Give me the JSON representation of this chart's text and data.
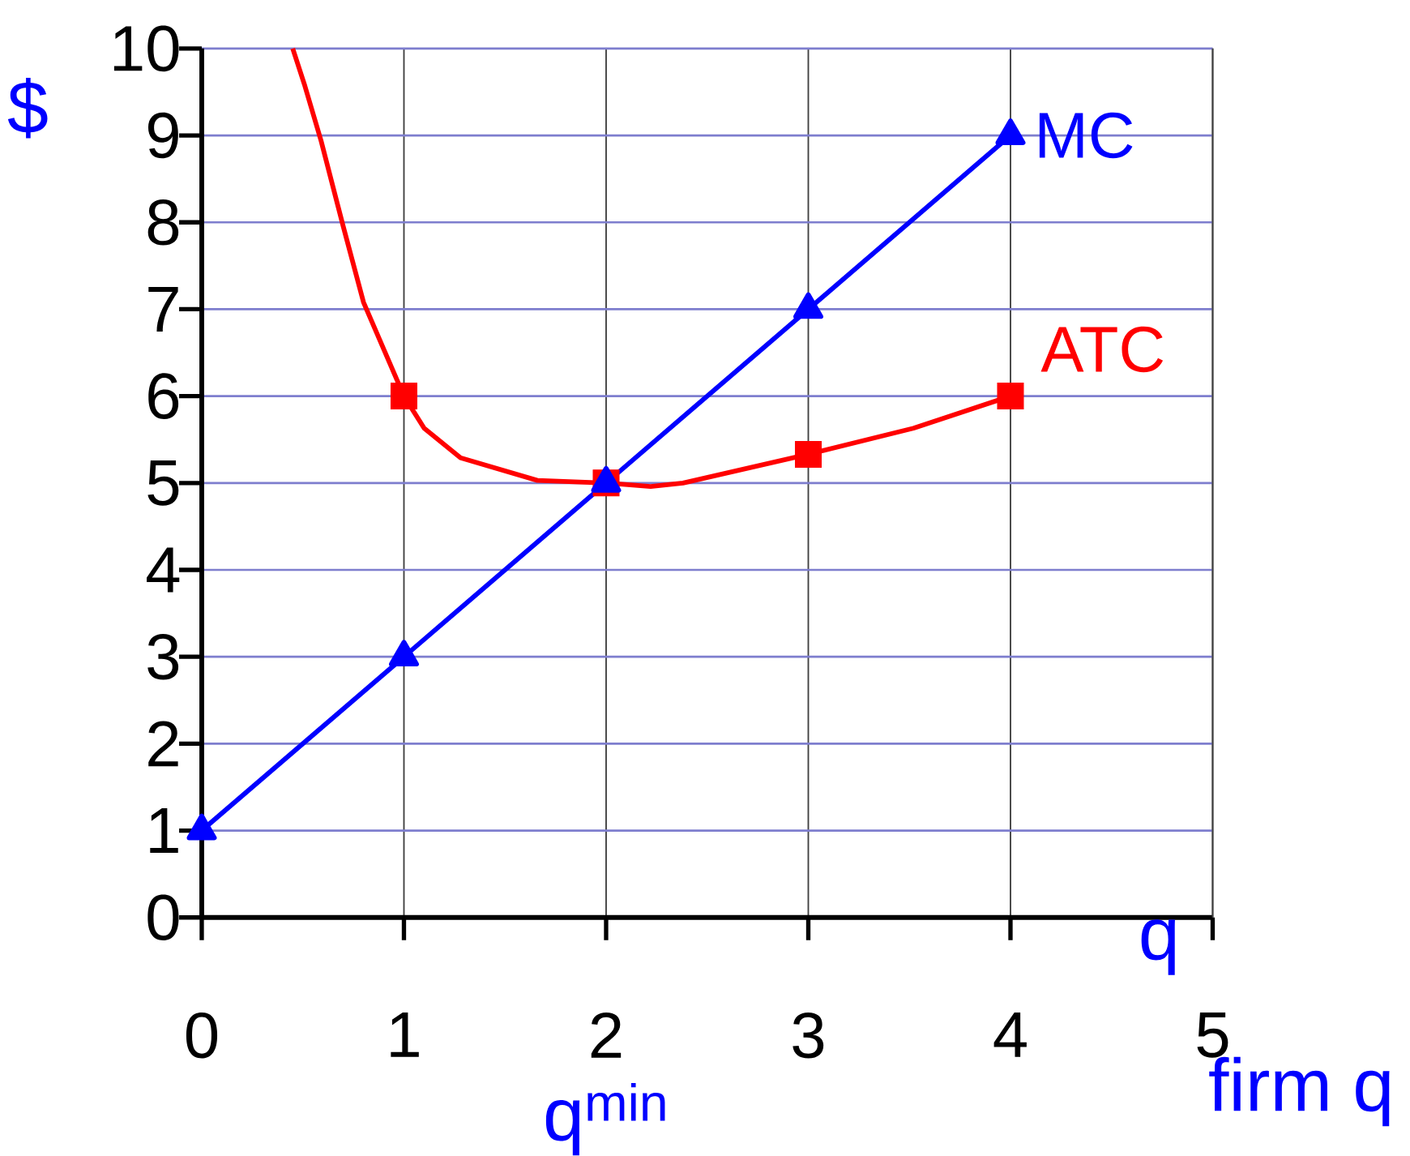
{
  "chart_data": {
    "type": "line",
    "xlabel": "q",
    "ylabel": "$",
    "xlim": [
      0,
      5
    ],
    "ylim": [
      0,
      10
    ],
    "xticks": [
      0,
      1,
      2,
      3,
      4,
      5
    ],
    "yticks": [
      0,
      1,
      2,
      3,
      4,
      5,
      6,
      7,
      8,
      9,
      10
    ],
    "grid": true,
    "series": [
      {
        "name": "ATC",
        "color": "#ff0000",
        "marker": "none",
        "x": [
          0.45,
          0.51,
          0.59,
          0.7,
          0.8,
          1,
          1.1,
          1.28,
          1.66,
          2,
          2.22,
          2.38,
          3,
          3.52,
          4
        ],
        "values": [
          10,
          9.57,
          8.94,
          7.95,
          7.08,
          6,
          5.63,
          5.29,
          5.03,
          5,
          4.96,
          5,
          5.33,
          5.63,
          6
        ]
      },
      {
        "type": "scatter",
        "color": "#ff0000",
        "marker": "square",
        "x": [
          1,
          2,
          3,
          4
        ],
        "values": [
          6,
          5,
          5.33,
          6
        ]
      },
      {
        "name": "MC",
        "color": "#0000ff",
        "marker": "triangle",
        "x": [
          0,
          1,
          2,
          3,
          4
        ],
        "values": [
          1,
          3,
          5,
          7,
          9
        ]
      }
    ],
    "annotations": [
      "q$^{min}$",
      "firm q"
    ]
  }
}
